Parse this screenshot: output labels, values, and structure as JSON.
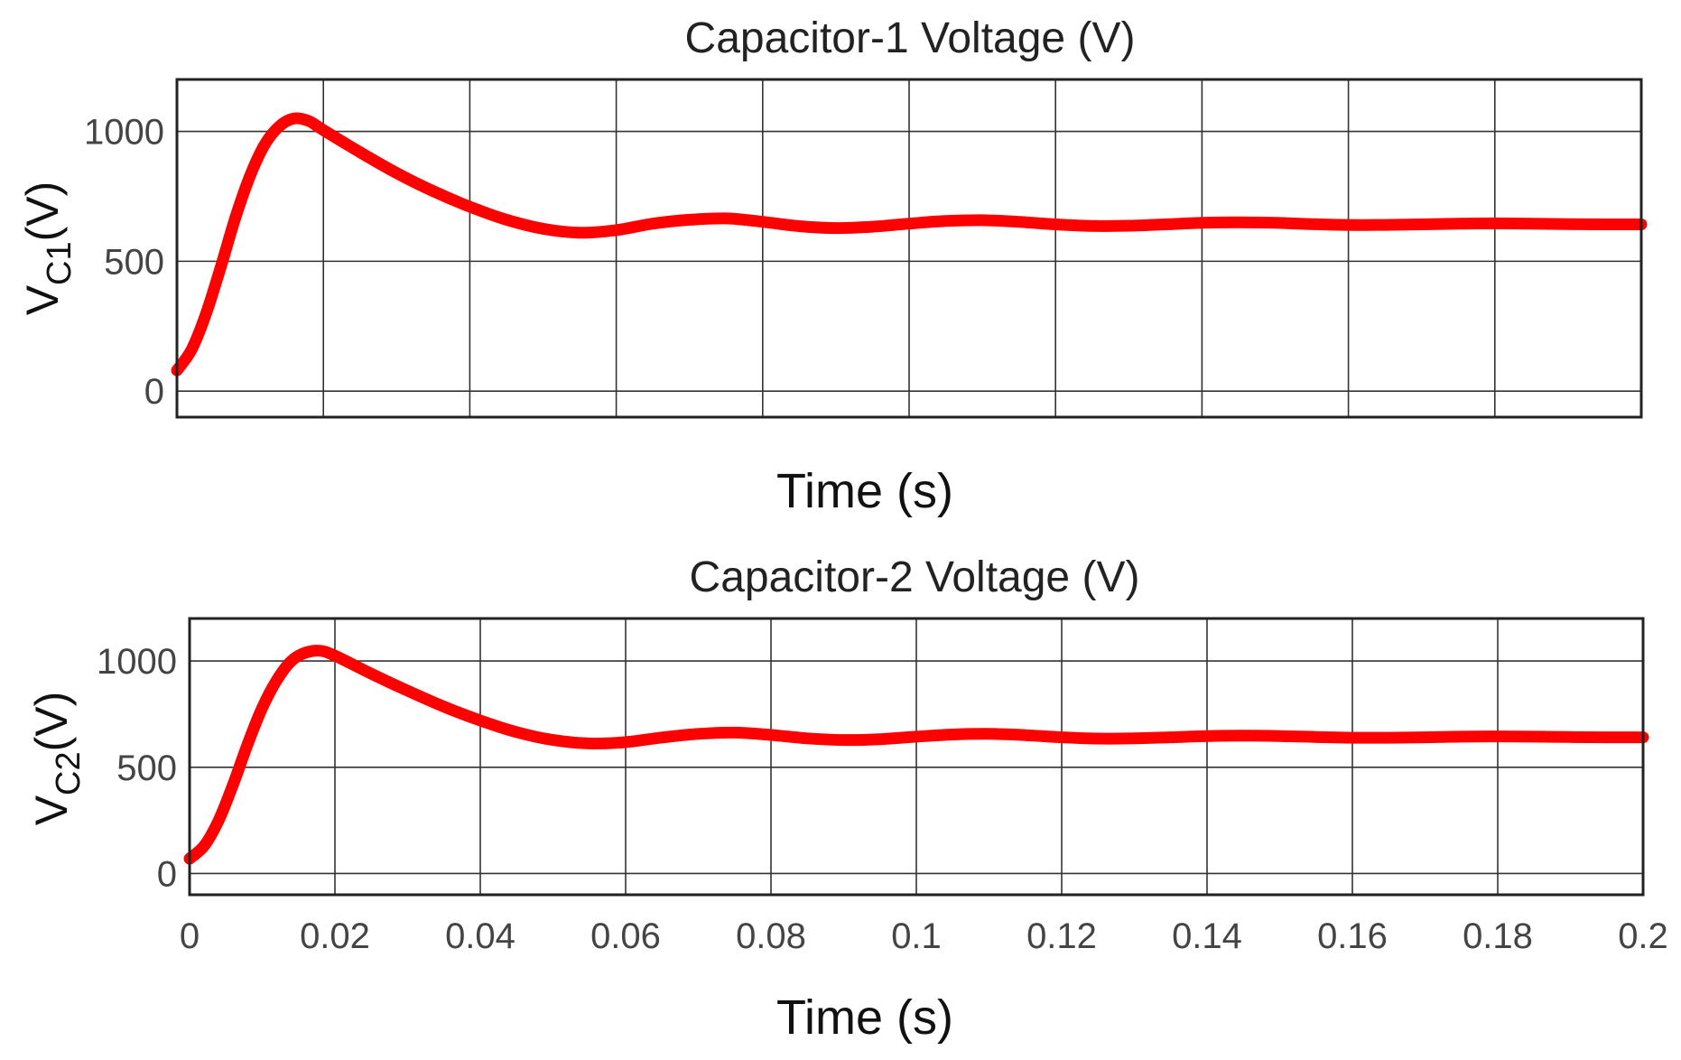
{
  "chart_data": [
    {
      "type": "line",
      "title": "Capacitor-1 Voltage (V)",
      "xlabel": "Time (s)",
      "ylabel": {
        "main": "V",
        "sub": "C1",
        "suffix": "(V)"
      },
      "xlim": [
        0,
        0.2
      ],
      "ylim": [
        -100,
        1200
      ],
      "xticks": [
        0,
        0.02,
        0.04,
        0.06,
        0.08,
        0.1,
        0.12,
        0.14,
        0.16,
        0.18,
        0.2
      ],
      "xtick_labels_shown": false,
      "yticks": [
        0,
        500,
        1000
      ],
      "ytick_labels": [
        "0",
        "500",
        "1000"
      ],
      "grid": true,
      "series": [
        {
          "name": "V_C1",
          "color": "#ff0000",
          "x": [
            0,
            0.002,
            0.004,
            0.006,
            0.008,
            0.01,
            0.012,
            0.014,
            0.016,
            0.018,
            0.02,
            0.025,
            0.03,
            0.035,
            0.04,
            0.045,
            0.05,
            0.055,
            0.06,
            0.065,
            0.07,
            0.075,
            0.08,
            0.085,
            0.09,
            0.095,
            0.1,
            0.105,
            0.11,
            0.115,
            0.12,
            0.125,
            0.13,
            0.135,
            0.14,
            0.145,
            0.15,
            0.155,
            0.16,
            0.165,
            0.17,
            0.175,
            0.18,
            0.185,
            0.19,
            0.195,
            0.2
          ],
          "y": [
            80,
            160,
            300,
            480,
            670,
            830,
            950,
            1020,
            1050,
            1040,
            1005,
            920,
            840,
            770,
            710,
            660,
            625,
            610,
            620,
            645,
            660,
            665,
            652,
            635,
            628,
            633,
            645,
            655,
            658,
            652,
            642,
            636,
            637,
            642,
            648,
            650,
            648,
            643,
            640,
            640,
            642,
            645,
            646,
            645,
            643,
            642,
            642
          ]
        }
      ]
    },
    {
      "type": "line",
      "title": "Capacitor-2 Voltage (V)",
      "xlabel": "Time (s)",
      "ylabel": {
        "main": "V",
        "sub": "C2",
        "suffix": "(V)"
      },
      "xlim": [
        0,
        0.2
      ],
      "ylim": [
        -100,
        1200
      ],
      "xticks": [
        0,
        0.02,
        0.04,
        0.06,
        0.08,
        0.1,
        0.12,
        0.14,
        0.16,
        0.18,
        0.2
      ],
      "xtick_labels": [
        "0",
        "0.02",
        "0.04",
        "0.06",
        "0.08",
        "0.1",
        "0.12",
        "0.14",
        "0.16",
        "0.18",
        "0.2"
      ],
      "yticks": [
        0,
        500,
        1000
      ],
      "ytick_labels": [
        "0",
        "500",
        "1000"
      ],
      "grid": true,
      "series": [
        {
          "name": "V_C2",
          "color": "#ff0000",
          "x": [
            0,
            0.002,
            0.004,
            0.006,
            0.008,
            0.01,
            0.012,
            0.014,
            0.016,
            0.018,
            0.02,
            0.025,
            0.03,
            0.035,
            0.04,
            0.045,
            0.05,
            0.055,
            0.06,
            0.065,
            0.07,
            0.075,
            0.08,
            0.085,
            0.09,
            0.095,
            0.1,
            0.105,
            0.11,
            0.115,
            0.12,
            0.125,
            0.13,
            0.135,
            0.14,
            0.145,
            0.15,
            0.155,
            0.16,
            0.165,
            0.17,
            0.175,
            0.18,
            0.185,
            0.19,
            0.195,
            0.2
          ],
          "y": [
            70,
            130,
            250,
            420,
            610,
            780,
            910,
            1000,
            1040,
            1048,
            1025,
            940,
            860,
            785,
            720,
            665,
            628,
            612,
            618,
            640,
            657,
            663,
            652,
            636,
            628,
            632,
            644,
            654,
            657,
            651,
            641,
            635,
            636,
            641,
            647,
            649,
            647,
            642,
            639,
            639,
            641,
            644,
            645,
            644,
            642,
            641,
            641
          ]
        }
      ]
    }
  ]
}
